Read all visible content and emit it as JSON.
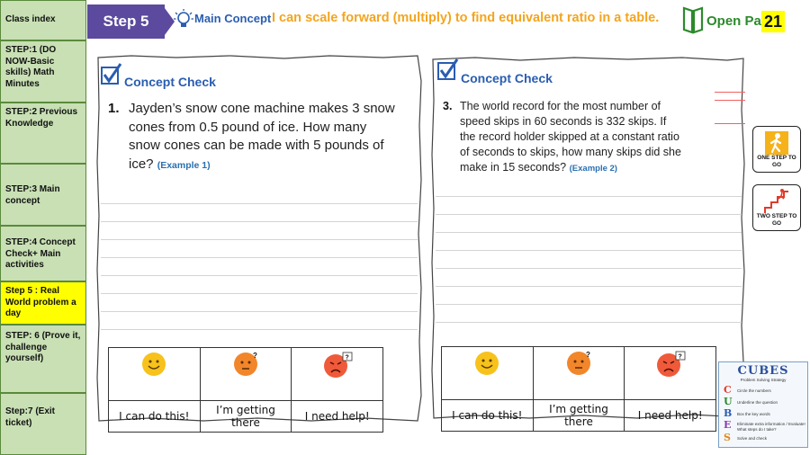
{
  "sidebar": {
    "header": "Class index",
    "items": [
      {
        "label": "STEP:1 (DO NOW-Basic skills) Math Minutes"
      },
      {
        "label": "STEP:2 Previous Knowledge"
      },
      {
        "label": "STEP:3 Main concept"
      },
      {
        "label": "STEP:4 Concept Check+ Main activities"
      },
      {
        "label": "Step 5 : Real World problem a day"
      },
      {
        "label": "STEP: 6 (Prove it, challenge yourself)"
      },
      {
        "label": "Step:7 (Exit ticket)"
      }
    ]
  },
  "header": {
    "step": "Step 5",
    "main_concept": "Main Concept",
    "objective": "I can scale forward (multiply) to find equivalent ratio in a table.",
    "open_page": "Open Page",
    "page_number": "21"
  },
  "left_sheet": {
    "title": "Concept Check",
    "number": "1.",
    "lines": [
      "Jayden’s snow cone machine makes 3 snow",
      "cones from 0.5 pound of ice. How many",
      "snow cones can be made with 5 pounds of"
    ],
    "last_line": "ice?",
    "example": "(Example 1)",
    "ratings": [
      "I can do this!",
      "I’m getting there",
      "I need help!"
    ]
  },
  "right_sheet": {
    "title": "Concept Check",
    "number": "3.",
    "lines": [
      "The world record for the most number of",
      "speed skips in 60 seconds is 332 skips. If",
      "the record holder skipped at a constant ratio",
      "of seconds to skips, how many skips did she"
    ],
    "last_line": "make in 15 seconds?",
    "example": "(Example 2)",
    "ratings": [
      "I can do this!",
      "I’m getting there",
      "I need help!"
    ]
  },
  "buttons": {
    "one_step": "ONE STEP TO GO",
    "two_step": "TWO STEP TO GO"
  },
  "cubes": {
    "title": "CUBES",
    "subtitle": "Problem Solving Strategy",
    "letters": [
      "C",
      "U",
      "B",
      "E",
      "S"
    ],
    "steps": [
      "Circle the numbers",
      "Underline the question",
      "Box the key words",
      "Eliminate extra information / Evaluate! What steps do I take?",
      "Solve and check"
    ]
  },
  "colors": {
    "sidebar_bg": "#c8e0b4",
    "active_bg": "#ffff00",
    "step_badge": "#5b4a9e",
    "objective": "#f3a51f",
    "concept_blue": "#2a5db0"
  }
}
